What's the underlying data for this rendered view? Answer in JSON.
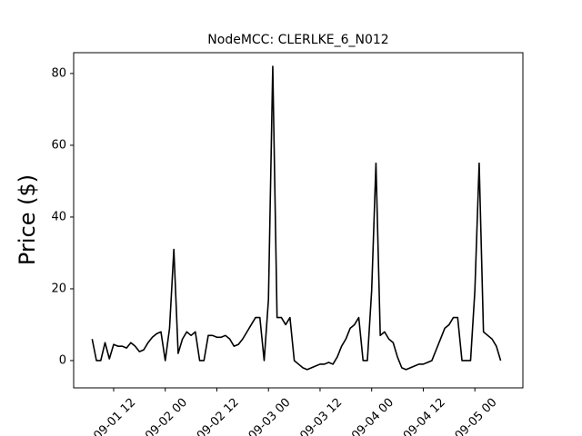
{
  "chart_data": {
    "type": "line",
    "title": "NodeMCC: CLERLKE_6_N012",
    "y_label": "Price ($)",
    "x": [
      "09-01 07:00",
      "09-01 08:00",
      "09-01 09:00",
      "09-01 10:00",
      "09-01 11:00",
      "09-01 12:00",
      "09-01 13:00",
      "09-01 14:00",
      "09-01 15:00",
      "09-01 16:00",
      "09-01 17:00",
      "09-01 18:00",
      "09-01 19:00",
      "09-01 20:00",
      "09-01 21:00",
      "09-01 22:00",
      "09-01 23:00",
      "09-02 00:00",
      "09-02 01:00",
      "09-02 02:00",
      "09-02 03:00",
      "09-02 04:00",
      "09-02 05:00",
      "09-02 06:00",
      "09-02 07:00",
      "09-02 08:00",
      "09-02 09:00",
      "09-02 10:00",
      "09-02 11:00",
      "09-02 12:00",
      "09-02 13:00",
      "09-02 14:00",
      "09-02 15:00",
      "09-02 16:00",
      "09-02 17:00",
      "09-02 18:00",
      "09-02 19:00",
      "09-02 20:00",
      "09-02 21:00",
      "09-02 22:00",
      "09-02 23:00",
      "09-03 00:00",
      "09-03 01:00",
      "09-03 02:00",
      "09-03 03:00",
      "09-03 04:00",
      "09-03 05:00",
      "09-03 06:00",
      "09-03 07:00",
      "09-03 08:00",
      "09-03 09:00",
      "09-03 10:00",
      "09-03 11:00",
      "09-03 12:00",
      "09-03 13:00",
      "09-03 14:00",
      "09-03 15:00",
      "09-03 16:00",
      "09-03 17:00",
      "09-03 18:00",
      "09-03 19:00",
      "09-03 20:00",
      "09-03 21:00",
      "09-03 22:00",
      "09-03 23:00",
      "09-04 00:00",
      "09-04 01:00",
      "09-04 02:00",
      "09-04 03:00",
      "09-04 04:00",
      "09-04 05:00",
      "09-04 06:00",
      "09-04 07:00",
      "09-04 08:00",
      "09-04 09:00",
      "09-04 10:00",
      "09-04 11:00",
      "09-04 12:00",
      "09-04 13:00",
      "09-04 14:00",
      "09-04 15:00",
      "09-04 16:00",
      "09-04 17:00",
      "09-04 18:00",
      "09-04 19:00",
      "09-04 20:00",
      "09-04 21:00",
      "09-04 22:00",
      "09-04 23:00",
      "09-05 00:00",
      "09-05 01:00",
      "09-05 02:00",
      "09-05 03:00",
      "09-05 04:00",
      "09-05 05:00",
      "09-05 06:00"
    ],
    "series": [
      {
        "color": "#000000",
        "values": [
          6,
          0,
          0,
          5,
          0.5,
          4.5,
          4,
          4,
          3.5,
          5,
          4,
          2.5,
          3,
          5,
          6.5,
          7.5,
          8,
          0,
          9,
          31,
          2,
          6,
          8,
          7,
          8,
          0,
          0,
          7,
          7,
          6.5,
          6.5,
          7,
          6,
          4,
          4.5,
          6,
          8,
          10,
          12,
          12,
          0,
          17,
          82,
          12,
          12,
          10,
          12,
          0,
          -1,
          -2,
          -2.5,
          -2,
          -1.5,
          -1,
          -1,
          -0.5,
          -1,
          1,
          4,
          6,
          9,
          10,
          12,
          0,
          0,
          19.5,
          55,
          7,
          8,
          6,
          5,
          1,
          -2,
          -2.5,
          -2,
          -1.5,
          -1,
          -1,
          -0.5,
          0,
          3,
          6,
          9,
          10,
          12,
          12,
          0,
          0,
          0,
          19.5,
          55,
          8,
          7,
          6,
          4,
          0
        ]
      }
    ],
    "xlim": [
      "09-01 02:42",
      "09-05 11:10"
    ],
    "xticks": [
      {
        "value": "09-01 12:00",
        "label": "09-01 12"
      },
      {
        "value": "09-02 00:00",
        "label": "09-02 00"
      },
      {
        "value": "09-02 12:00",
        "label": "09-02 12"
      },
      {
        "value": "09-03 00:00",
        "label": "09-03 00"
      },
      {
        "value": "09-03 12:00",
        "label": "09-03 12"
      },
      {
        "value": "09-04 00:00",
        "label": "09-04 00"
      },
      {
        "value": "09-04 12:00",
        "label": "09-04 12"
      },
      {
        "value": "09-05 00:00",
        "label": "09-05 00"
      }
    ],
    "ylim": [
      -7.6,
      85.8
    ],
    "yticks": [
      0,
      20,
      40,
      60,
      80
    ]
  }
}
